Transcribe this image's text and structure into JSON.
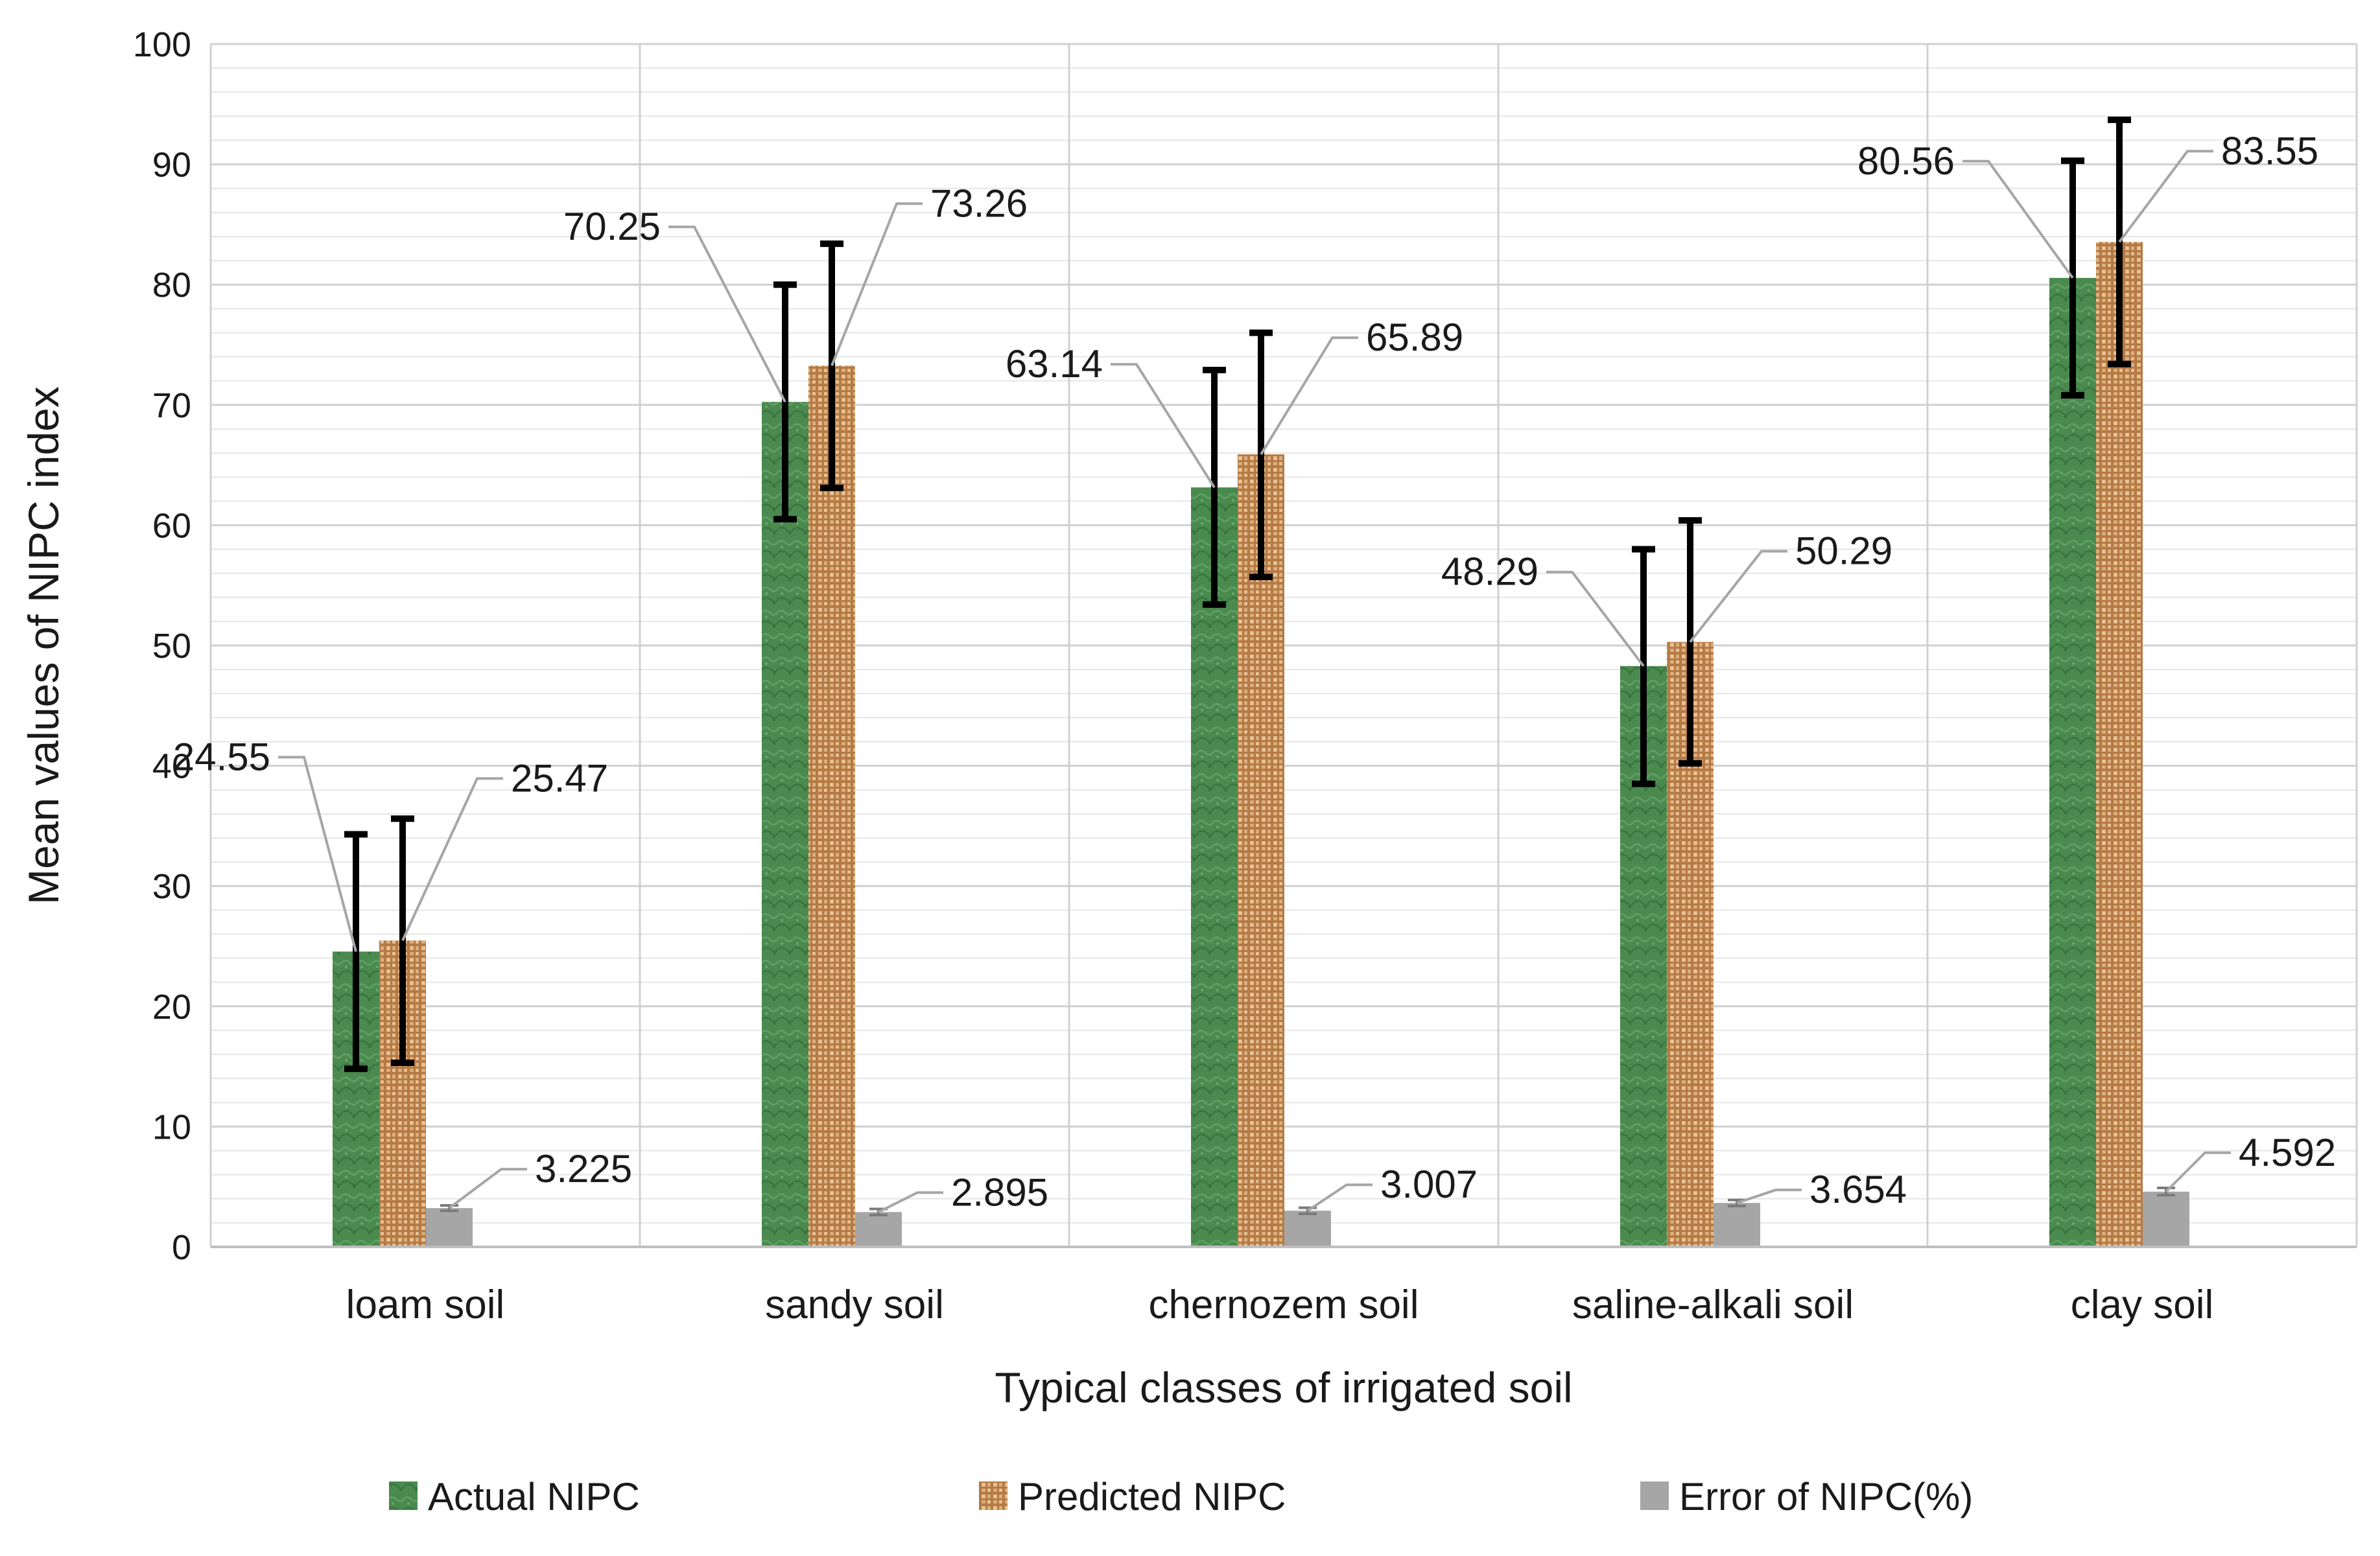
{
  "chart_data": {
    "type": "bar",
    "title": "",
    "xlabel": "Typical classes of irrigated soil",
    "ylabel": "Mean values of NIPC index",
    "ylim": [
      0,
      100
    ],
    "yticks": [
      0,
      10,
      20,
      30,
      40,
      50,
      60,
      70,
      80,
      90,
      100
    ],
    "grid": true,
    "legend_position": "bottom",
    "categories": [
      "loam soil",
      "sandy soil",
      "chernozem soil",
      "saline-alkali soil",
      "clay soil"
    ],
    "series": [
      {
        "name": "Actual NIPC",
        "color": "#4a8a4e",
        "values": [
          24.55,
          70.25,
          63.14,
          48.29,
          80.56
        ],
        "labels": [
          "24.55",
          "70.25",
          "63.14",
          "48.29",
          "80.56"
        ],
        "error_bars": [
          [
            14.8,
            34.3
          ],
          [
            60.5,
            80.0
          ],
          [
            53.4,
            72.9
          ],
          [
            38.5,
            58.0
          ],
          [
            70.8,
            90.3
          ]
        ]
      },
      {
        "name": "Predicted NIPC",
        "color": "#c9955f",
        "values": [
          25.47,
          73.26,
          65.89,
          50.29,
          83.55
        ],
        "labels": [
          "25.47",
          "73.26",
          "65.89",
          "50.29",
          "83.55"
        ],
        "error_bars": [
          [
            15.3,
            35.6
          ],
          [
            63.1,
            83.4
          ],
          [
            55.7,
            76.0
          ],
          [
            40.2,
            60.4
          ],
          [
            73.4,
            93.7
          ]
        ]
      },
      {
        "name": "Error of NIPC(%)",
        "color": "#a6a6a6",
        "values": [
          3.225,
          2.895,
          3.007,
          3.654,
          4.592
        ],
        "labels": [
          "3.225",
          "2.895",
          "3.007",
          "3.654",
          "4.592"
        ],
        "error_bars": [
          [
            3.0,
            3.45
          ],
          [
            2.65,
            3.15
          ],
          [
            2.75,
            3.25
          ],
          [
            3.4,
            3.9
          ],
          [
            4.3,
            4.9
          ]
        ]
      }
    ]
  }
}
